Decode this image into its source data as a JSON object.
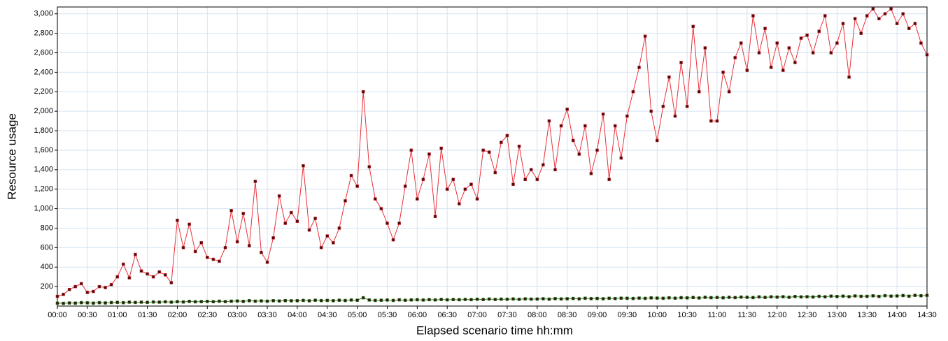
{
  "chart_data": {
    "type": "line",
    "x_label": "Elapsed scenario time hh:mm",
    "y_label": "Resource usage",
    "grid": true,
    "xlim": [
      0,
      870
    ],
    "ylim": [
      0,
      3070
    ],
    "xticks": [
      {
        "value": 0,
        "label": "00:00"
      },
      {
        "value": 30,
        "label": "00:30"
      },
      {
        "value": 60,
        "label": "01:00"
      },
      {
        "value": 90,
        "label": "01:30"
      },
      {
        "value": 120,
        "label": "02:00"
      },
      {
        "value": 150,
        "label": "02:30"
      },
      {
        "value": 180,
        "label": "03:00"
      },
      {
        "value": 210,
        "label": "03:30"
      },
      {
        "value": 240,
        "label": "04:00"
      },
      {
        "value": 270,
        "label": "04:30"
      },
      {
        "value": 300,
        "label": "05:00"
      },
      {
        "value": 330,
        "label": "05:30"
      },
      {
        "value": 360,
        "label": "06:00"
      },
      {
        "value": 390,
        "label": "06:30"
      },
      {
        "value": 420,
        "label": "07:00"
      },
      {
        "value": 450,
        "label": "07:30"
      },
      {
        "value": 480,
        "label": "08:00"
      },
      {
        "value": 510,
        "label": "08:30"
      },
      {
        "value": 540,
        "label": "09:00"
      },
      {
        "value": 570,
        "label": "09:30"
      },
      {
        "value": 600,
        "label": "10:00"
      },
      {
        "value": 630,
        "label": "10:30"
      },
      {
        "value": 660,
        "label": "11:00"
      },
      {
        "value": 690,
        "label": "11:30"
      },
      {
        "value": 720,
        "label": "12:00"
      },
      {
        "value": 750,
        "label": "12:30"
      },
      {
        "value": 780,
        "label": "13:00"
      },
      {
        "value": 810,
        "label": "13:30"
      },
      {
        "value": 840,
        "label": "14:00"
      },
      {
        "value": 870,
        "label": "14:30"
      }
    ],
    "yticks": [
      200,
      400,
      600,
      800,
      {
        "value": 1000,
        "label": "1,000"
      },
      {
        "value": 1200,
        "label": "1,200"
      },
      {
        "value": 1400,
        "label": "1,400"
      },
      {
        "value": 1600,
        "label": "1,600"
      },
      {
        "value": 1800,
        "label": "1,800"
      },
      {
        "value": 2000,
        "label": "2,000"
      },
      {
        "value": 2200,
        "label": "2,200"
      },
      {
        "value": 2400,
        "label": "2,400"
      },
      {
        "value": 2600,
        "label": "2,600"
      },
      {
        "value": 2800,
        "label": "2,800"
      },
      {
        "value": 3000,
        "label": "3,000"
      }
    ],
    "x": [
      0,
      6,
      12,
      18,
      24,
      30,
      36,
      42,
      48,
      54,
      60,
      66,
      72,
      78,
      84,
      90,
      96,
      102,
      108,
      114,
      120,
      126,
      132,
      138,
      144,
      150,
      156,
      162,
      168,
      174,
      180,
      186,
      192,
      198,
      204,
      210,
      216,
      222,
      228,
      234,
      240,
      246,
      252,
      258,
      264,
      270,
      276,
      282,
      288,
      294,
      300,
      306,
      312,
      318,
      324,
      330,
      336,
      342,
      348,
      354,
      360,
      366,
      372,
      378,
      384,
      390,
      396,
      402,
      408,
      414,
      420,
      426,
      432,
      438,
      444,
      450,
      456,
      462,
      468,
      474,
      480,
      486,
      492,
      498,
      504,
      510,
      516,
      522,
      528,
      534,
      540,
      546,
      552,
      558,
      564,
      570,
      576,
      582,
      588,
      594,
      600,
      606,
      612,
      618,
      624,
      630,
      636,
      642,
      648,
      654,
      660,
      666,
      672,
      678,
      684,
      690,
      696,
      702,
      708,
      714,
      720,
      726,
      732,
      738,
      744,
      750,
      756,
      762,
      768,
      774,
      780,
      786,
      792,
      798,
      804,
      810,
      816,
      822,
      828,
      834,
      840,
      846,
      852,
      858,
      864,
      870
    ],
    "series": [
      {
        "color": "#e8303a",
        "values": [
          100,
          120,
          170,
          200,
          230,
          140,
          150,
          200,
          190,
          220,
          300,
          430,
          290,
          530,
          360,
          330,
          300,
          350,
          320,
          240,
          880,
          600,
          840,
          560,
          650,
          500,
          480,
          460,
          600,
          980,
          660,
          950,
          620,
          1280,
          550,
          450,
          700,
          1130,
          850,
          960,
          870,
          1440,
          780,
          900,
          600,
          720,
          650,
          800,
          1080,
          1340,
          1230,
          2200,
          1430,
          1100,
          1000,
          850,
          680,
          850,
          1230,
          1600,
          1100,
          1300,
          1560,
          920,
          1620,
          1200,
          1300,
          1050,
          1200,
          1250,
          1100,
          1600,
          1580,
          1370,
          1680,
          1750,
          1250,
          1640,
          1300,
          1400,
          1300,
          1450,
          1900,
          1400,
          1850,
          2020,
          1700,
          1560,
          1850,
          1360,
          1600,
          1970,
          1300,
          1850,
          1520,
          1950,
          2200,
          2450,
          2770,
          2000,
          1700,
          2050,
          2350,
          1950,
          2500,
          2050,
          2870,
          2200,
          2650,
          1900,
          1900,
          2400,
          2200,
          2550,
          2700,
          2420,
          2980,
          2600,
          2850,
          2450,
          2700,
          2420,
          2650,
          2500,
          2750,
          2780,
          2600,
          2820,
          2980,
          2600,
          2700,
          2900,
          2350,
          2950,
          2800,
          2980,
          3050,
          2950,
          3000,
          3050,
          2900,
          3000,
          2850,
          2900,
          2700,
          2580
        ]
      },
      {
        "color": "#2e8b2e",
        "values": [
          30,
          28,
          32,
          30,
          35,
          33,
          30,
          35,
          32,
          36,
          38,
          35,
          40,
          37,
          40,
          38,
          42,
          40,
          44,
          40,
          45,
          42,
          48,
          44,
          46,
          48,
          45,
          50,
          46,
          50,
          52,
          48,
          55,
          50,
          53,
          50,
          55,
          52,
          56,
          54,
          55,
          58,
          54,
          60,
          56,
          58,
          55,
          60,
          57,
          62,
          60,
          85,
          62,
          58,
          60,
          62,
          58,
          64,
          60,
          63,
          65,
          62,
          66,
          63,
          68,
          64,
          67,
          65,
          68,
          66,
          70,
          67,
          72,
          68,
          71,
          70,
          73,
          69,
          74,
          71,
          72,
          75,
          71,
          76,
          73,
          75,
          78,
          74,
          80,
          76,
          78,
          75,
          80,
          77,
          81,
          80,
          78,
          82,
          79,
          84,
          82,
          80,
          85,
          81,
          86,
          84,
          88,
          83,
          90,
          86,
          88,
          85,
          90,
          87,
          92,
          90,
          87,
          94,
          89,
          95,
          92,
          96,
          90,
          98,
          94,
          96,
          93,
          100,
          95,
          102,
          98,
          102,
          96,
          104,
          100,
          100,
          105,
          99,
          107,
          102,
          104,
          108,
          101,
          110,
          106,
          110
        ]
      }
    ]
  }
}
